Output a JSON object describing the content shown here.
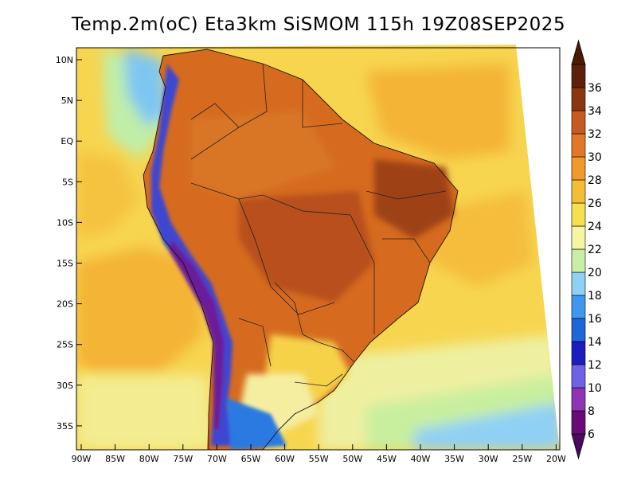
{
  "title": "Temp.2m(oC) Eta3km SiSMOM 115h 19Z08SEP2025",
  "lat_labels": [
    "10N",
    "5N",
    "EQ",
    "5S",
    "10S",
    "15S",
    "20S",
    "25S",
    "30S",
    "35S"
  ],
  "lon_labels": [
    "90W",
    "85W",
    "80W",
    "75W",
    "70W",
    "65W",
    "60W",
    "55W",
    "50W",
    "45W",
    "40W",
    "35W",
    "30W",
    "25W",
    "20W"
  ],
  "colorbar": {
    "labels": [
      "6",
      "8",
      "10",
      "12",
      "14",
      "16",
      "18",
      "20",
      "22",
      "24",
      "26",
      "28",
      "30",
      "32",
      "34",
      "36"
    ],
    "colors": [
      "#6a0a7a",
      "#8f34b4",
      "#6e62e6",
      "#1c1cc0",
      "#1f66d9",
      "#3f97f0",
      "#8fd0f5",
      "#c7f0a6",
      "#f6f5a4",
      "#f7e04e",
      "#f5bd36",
      "#f09a2a",
      "#e27827",
      "#c75a20",
      "#8b3610",
      "#5e2008"
    ],
    "below_color": "#4a0a60",
    "above_color": "#4a1a05"
  },
  "legend_colors": {
    "ocean_warm": "#f7dc55",
    "ocean_mid": "#f5bd36",
    "ocean_cool": "#f2f0a0",
    "land_hot": "#d2691e",
    "land_very_hot": "#a94a14",
    "andes_cold": "#3a3ad0"
  }
}
